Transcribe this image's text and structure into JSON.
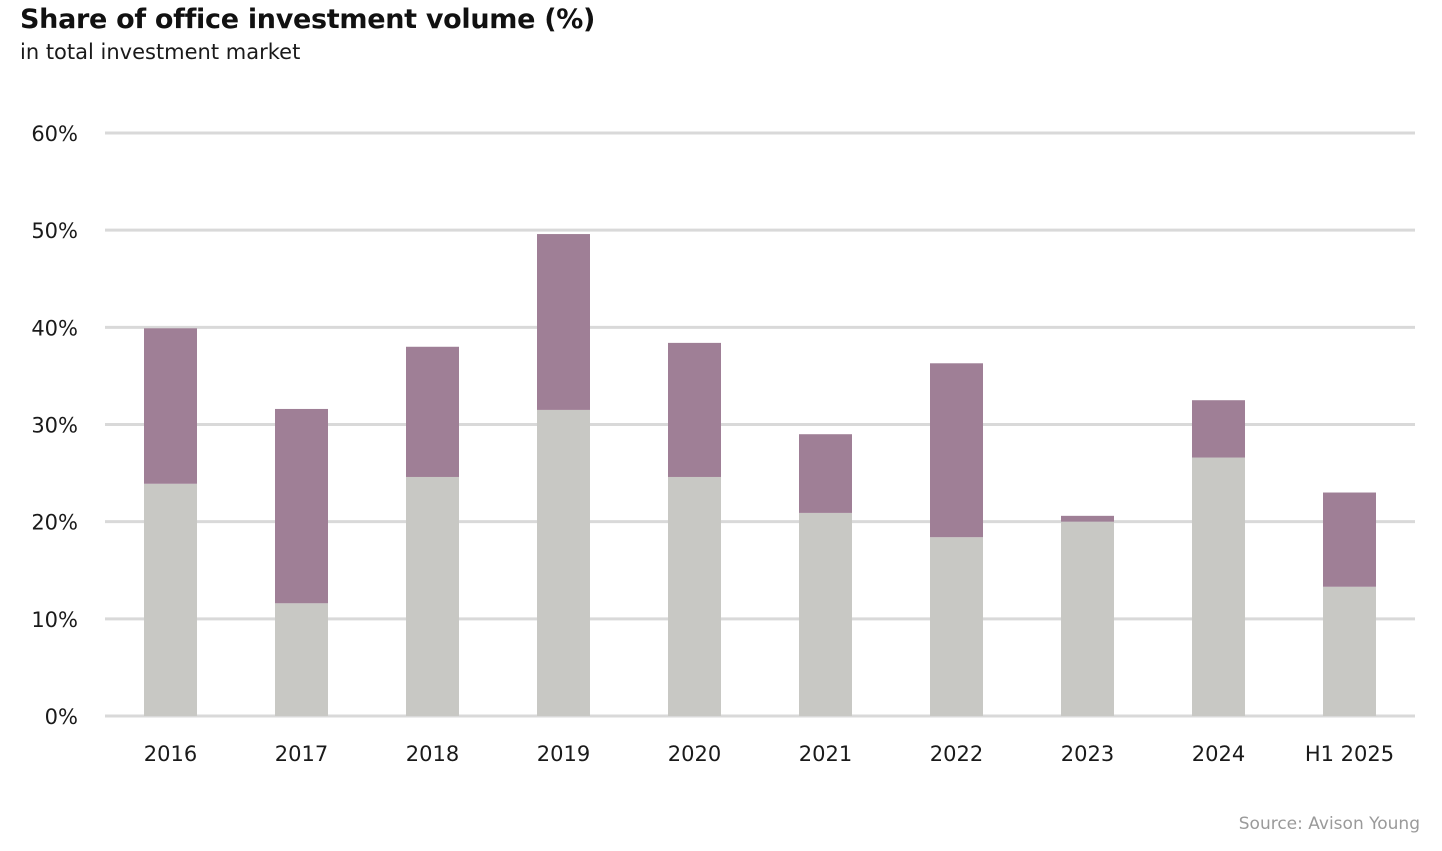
{
  "title": "Share of office investment volume (%)",
  "subtitle": "in total investment market",
  "source": "Source: Avison Young",
  "chart_data": {
    "type": "bar",
    "stacked": true,
    "title": "Share of office investment volume (%)",
    "subtitle": "in total investment market",
    "categories": [
      "2016",
      "2017",
      "2018",
      "2019",
      "2020",
      "2021",
      "2022",
      "2023",
      "2024",
      "H1 2025"
    ],
    "series": [
      {
        "color": "#c8c8c4",
        "values": [
          23.9,
          11.6,
          24.6,
          31.5,
          24.6,
          20.9,
          18.4,
          20.0,
          26.6,
          13.3
        ]
      },
      {
        "color": "#9f7f96",
        "values": [
          16.0,
          20.0,
          13.4,
          18.1,
          13.8,
          8.1,
          17.9,
          0.6,
          5.9,
          9.7
        ]
      }
    ],
    "ylim": [
      0,
      60
    ],
    "yticks": [
      0,
      10,
      20,
      30,
      40,
      50,
      60
    ],
    "ytick_labels": [
      "0%",
      "10%",
      "20%",
      "30%",
      "40%",
      "50%",
      "60%"
    ],
    "grid": true,
    "legend": "none",
    "gridline_color": "#d9d9d9"
  }
}
